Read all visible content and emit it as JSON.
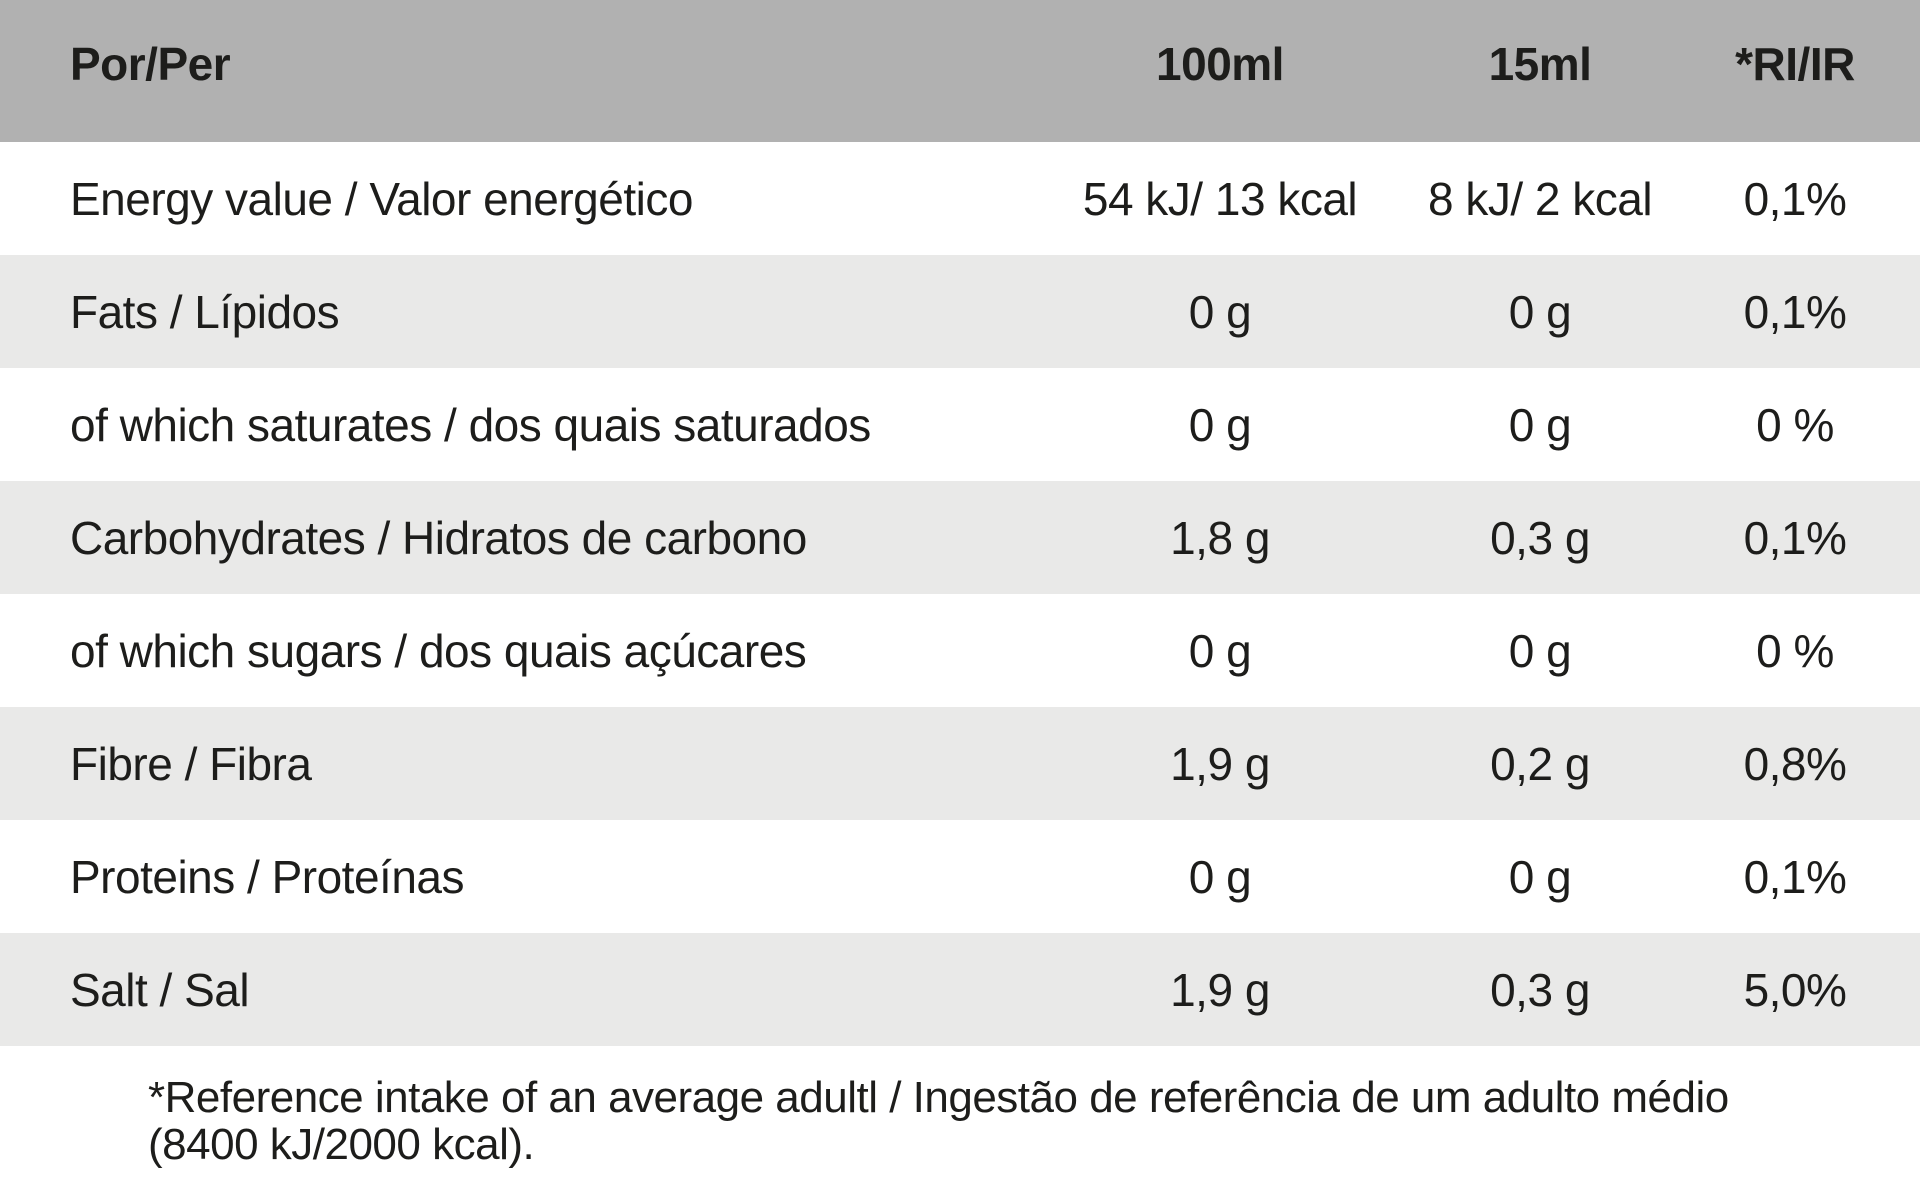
{
  "table": {
    "header": {
      "col_label": "Por/Per",
      "col_100ml": "100ml",
      "col_15ml": "15ml",
      "col_ri": "*RI/IR"
    },
    "rows": [
      {
        "label": "Energy value / Valor energético",
        "per_100ml": "54 kJ/ 13 kcal",
        "per_15ml": "8 kJ/ 2 kcal",
        "ri": "0,1%",
        "shaded": false
      },
      {
        "label": "Fats / Lípidos",
        "per_100ml": "0 g",
        "per_15ml": "0 g",
        "ri": "0,1%",
        "shaded": true
      },
      {
        "label": "of which saturates / dos quais saturados",
        "per_100ml": "0 g",
        "per_15ml": "0 g",
        "ri": "0 %",
        "shaded": false
      },
      {
        "label": "Carbohydrates / Hidratos de carbono",
        "per_100ml": "1,8 g",
        "per_15ml": "0,3 g",
        "ri": "0,1%",
        "shaded": true
      },
      {
        "label": "of which sugars / dos quais açúcares",
        "per_100ml": "0 g",
        "per_15ml": "0 g",
        "ri": "0 %",
        "shaded": false
      },
      {
        "label": "Fibre / Fibra",
        "per_100ml": "1,9 g",
        "per_15ml": "0,2 g",
        "ri": "0,8%",
        "shaded": true
      },
      {
        "label": "Proteins / Proteínas",
        "per_100ml": "0 g",
        "per_15ml": "0 g",
        "ri": "0,1%",
        "shaded": false
      },
      {
        "label": "Salt / Sal",
        "per_100ml": "1,9 g",
        "per_15ml": "0,3 g",
        "ri": "5,0%",
        "shaded": true
      }
    ],
    "footnote_line1": "*Reference intake of an average adultl / Ingestão de referência de um adulto médio",
    "footnote_line2": "(8400 kJ/2000 kcal).",
    "colors": {
      "header_bg": "#b1b1b1",
      "row_shaded_bg": "#e9e9e8",
      "row_plain_bg": "#ffffff",
      "text": "#1d1d1b"
    }
  }
}
